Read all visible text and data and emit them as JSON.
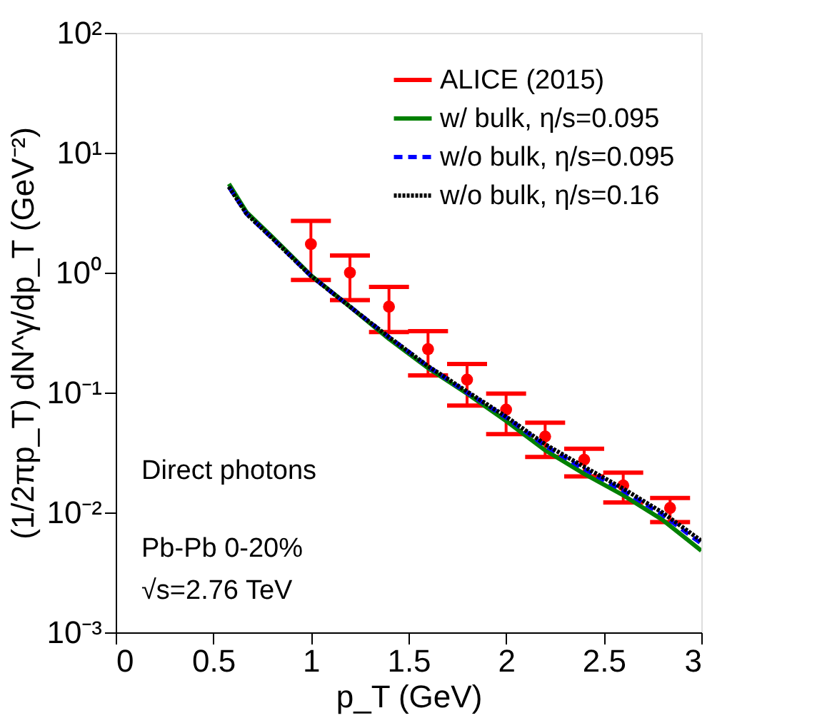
{
  "chart_data": {
    "type": "line",
    "xlabel": "p_T (GeV)",
    "ylabel": "(1/2πp_T) dN^γ/dp_T (GeV⁻²)",
    "xlim": [
      0,
      3
    ],
    "xticks": [
      0,
      0.5,
      1,
      1.5,
      2,
      2.5,
      3
    ],
    "ylim": [
      0.001,
      100
    ],
    "yticks": [
      {
        "value": 0.001,
        "label": "10⁻³"
      },
      {
        "value": 0.01,
        "label": "10⁻²"
      },
      {
        "value": 0.1,
        "label": "10⁻¹"
      },
      {
        "value": 1,
        "label": "10⁰"
      },
      {
        "value": 10,
        "label": "10¹"
      },
      {
        "value": 100,
        "label": "10²"
      }
    ],
    "log": "y",
    "grid": false,
    "legend": "top right",
    "annotations": [
      "Direct photons",
      "Pb-Pb 0-20%",
      "√s=2.76 TeV"
    ],
    "series": [
      {
        "name": "ALICE (2015)",
        "type": "scatter",
        "marker": "circle",
        "color": "#ff0000",
        "x": [
          1.0,
          1.2,
          1.4,
          1.6,
          1.8,
          2.0,
          2.2,
          2.4,
          2.6,
          2.84
        ],
        "values": [
          1.73,
          1.0,
          0.52,
          0.23,
          0.128,
          0.072,
          0.043,
          0.0275,
          0.0168,
          0.0109
        ],
        "errors": [
          [
            0.87,
            2.7
          ],
          [
            0.59,
            1.39
          ],
          [
            0.32,
            0.76
          ],
          [
            0.139,
            0.325
          ],
          [
            0.078,
            0.173
          ],
          [
            0.045,
            0.098
          ],
          [
            0.029,
            0.056
          ],
          [
            0.02,
            0.034
          ],
          [
            0.0121,
            0.0215
          ],
          [
            0.0083,
            0.0132
          ]
        ]
      },
      {
        "name": "w/ bulk, η/s=0.095",
        "line_style": "solid",
        "color": "#008000",
        "x": [
          0.58,
          0.67,
          0.8,
          1.0,
          1.2,
          1.4,
          1.6,
          1.8,
          2.0,
          2.2,
          2.4,
          2.6,
          2.8,
          3.0
        ],
        "values": [
          5.5,
          3.2,
          2.0,
          0.95,
          0.52,
          0.28,
          0.16,
          0.098,
          0.058,
          0.033,
          0.021,
          0.0139,
          0.0087,
          0.0048
        ]
      },
      {
        "name": "w/o bulk, η/s=0.095",
        "line_style": "dashed",
        "color": "#0000ff",
        "x": [
          0.58,
          0.67,
          0.8,
          1.0,
          1.2,
          1.4,
          1.6,
          1.8,
          2.0,
          2.2,
          2.4,
          2.6,
          2.8,
          3.0
        ],
        "values": [
          5.2,
          3.1,
          1.95,
          0.94,
          0.52,
          0.29,
          0.165,
          0.1,
          0.062,
          0.036,
          0.023,
          0.0152,
          0.0096,
          0.0055
        ]
      },
      {
        "name": "w/o bulk, η/s=0.16",
        "line_style": "dotted",
        "color": "#000000",
        "x": [
          0.58,
          0.67,
          0.8,
          1.0,
          1.2,
          1.4,
          1.6,
          1.8,
          2.0,
          2.2,
          2.4,
          2.6,
          2.8,
          3.0
        ],
        "values": [
          5.2,
          3.1,
          1.95,
          0.94,
          0.52,
          0.29,
          0.166,
          0.102,
          0.063,
          0.037,
          0.024,
          0.0158,
          0.01,
          0.0058
        ]
      }
    ]
  }
}
